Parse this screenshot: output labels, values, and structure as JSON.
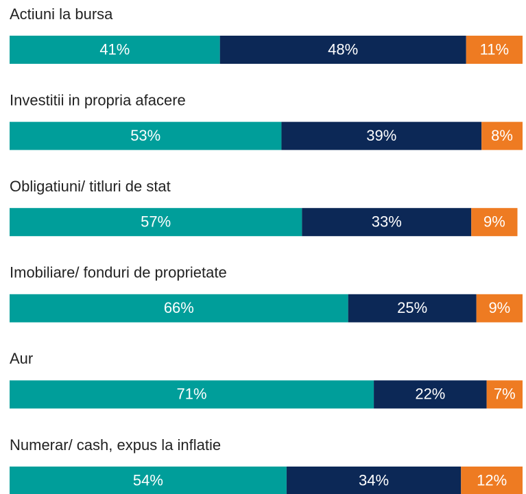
{
  "chart_data": {
    "type": "stacked-barh",
    "categories": [
      "Actiuni la bursa",
      "Investitii in propria afacere",
      "Obligatiuni/ titluri de stat",
      "Imobiliare/ fonduri de proprietate",
      "Aur",
      "Numerar/ cash, expus la inflatie"
    ],
    "series": [
      {
        "color": "#009e9a",
        "values": [
          41,
          53,
          57,
          66,
          71,
          54
        ],
        "value_labels": [
          "41%",
          "53%",
          "57%",
          "66%",
          "71%",
          "54%"
        ]
      },
      {
        "color": "#0c2856",
        "values": [
          48,
          39,
          33,
          25,
          22,
          34
        ],
        "value_labels": [
          "48%",
          "39%",
          "33%",
          "25%",
          "22%",
          "34%"
        ]
      },
      {
        "color": "#ee7b22",
        "values": [
          11,
          8,
          9,
          9,
          7,
          12
        ],
        "value_labels": [
          "11%",
          "8%",
          "9%",
          "9%",
          "7%",
          "12%"
        ]
      }
    ],
    "xlim": [
      0,
      100
    ]
  }
}
